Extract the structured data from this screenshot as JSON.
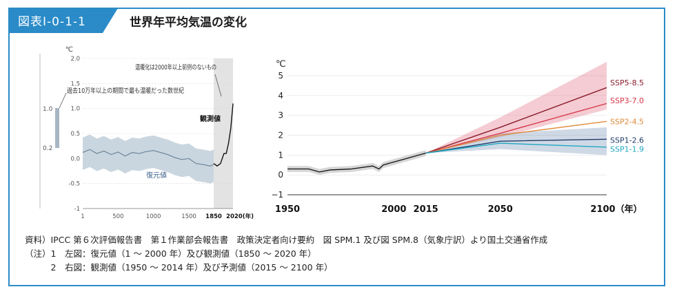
{
  "header": {
    "code": "図表Ⅰ-0-1-1",
    "title": "世界年平均気温の変化"
  },
  "colors": {
    "accent": "#2a8bc8"
  },
  "notes": [
    "資料）IPCC 第６次評価報告書　第１作業部会報告書　政策決定者向け要約　図 SPM.1 及び図 SPM.8（気象庁訳）より国土交通省作成",
    "（注）1　左図：復元値（1 ～ 2000 年）及び観測値（1850 ～ 2020 年）",
    "　　　2　右図：観測値（1950 ～ 2014 年）及び予測値（2015 ～ 2100 年）"
  ],
  "chart_data": [
    {
      "type": "line",
      "title": "",
      "ylabel": "℃",
      "ylim": [
        -1,
        2
      ],
      "xlim": [
        1,
        2020
      ],
      "yticks": [
        "2.0",
        "1.5",
        "1.0",
        "0.5",
        "0.0",
        "-0.5",
        "-1"
      ],
      "xticks": [
        "1",
        "500",
        "1000",
        "1500",
        "1850",
        "2020(年)"
      ],
      "side_bar": {
        "top": "1.0",
        "bottom": "0.2",
        "caption": "過去10万年以上の期間で最も温暖だった数世紀"
      },
      "annotations": [
        "温暖化は2000年以上前例のないもの",
        "観測値",
        "復元値"
      ],
      "series": [
        {
          "name": "復元値",
          "x": [
            1,
            100,
            200,
            300,
            400,
            500,
            600,
            700,
            800,
            900,
            1000,
            1100,
            1200,
            1300,
            1400,
            1500,
            1600,
            1700,
            1800,
            1850
          ],
          "y": [
            0.12,
            0.18,
            0.1,
            0.15,
            0.08,
            0.13,
            0.05,
            0.12,
            0.1,
            0.14,
            0.16,
            0.12,
            0.08,
            0.02,
            -0.02,
            0.0,
            -0.1,
            -0.12,
            -0.15,
            -0.12
          ]
        },
        {
          "name": "観測値",
          "x": [
            1850,
            1880,
            1910,
            1940,
            1960,
            1980,
            2000,
            2010,
            2020
          ],
          "y": [
            -0.1,
            -0.15,
            -0.1,
            0.1,
            0.1,
            0.3,
            0.6,
            0.85,
            1.1
          ]
        }
      ]
    },
    {
      "type": "line",
      "ylabel": "℃",
      "ylim": [
        -1,
        5
      ],
      "yticks": [
        "5",
        "4",
        "3",
        "2",
        "1",
        "0",
        "−1"
      ],
      "xticks": [
        "1950",
        "2000",
        "2015",
        "2050",
        "2100（年）"
      ],
      "series": [
        {
          "name": "観測値",
          "x": [
            1950,
            1960,
            1965,
            1970,
            1980,
            1990,
            1993,
            1995,
            2000,
            2005,
            2010,
            2015
          ],
          "y": [
            0.3,
            0.3,
            0.15,
            0.25,
            0.3,
            0.45,
            0.3,
            0.5,
            0.65,
            0.8,
            0.95,
            1.1
          ]
        },
        {
          "name": "SSP5-8.5",
          "color": "#8b1a2b",
          "x": [
            2015,
            2050,
            2100
          ],
          "y": [
            1.1,
            2.4,
            4.4
          ]
        },
        {
          "name": "SSP3-7.0",
          "color": "#d63347",
          "x": [
            2015,
            2050,
            2100
          ],
          "y": [
            1.1,
            2.1,
            3.6
          ]
        },
        {
          "name": "SSP2-4.5",
          "color": "#e08a3c",
          "x": [
            2015,
            2050,
            2100
          ],
          "y": [
            1.1,
            2.0,
            2.7
          ]
        },
        {
          "name": "SSP1-2.6",
          "color": "#1f3a66",
          "x": [
            2015,
            2050,
            2100
          ],
          "y": [
            1.1,
            1.7,
            1.8
          ]
        },
        {
          "name": "SSP1-1.9",
          "color": "#1fa6c2",
          "x": [
            2015,
            2050,
            2100
          ],
          "y": [
            1.1,
            1.6,
            1.4
          ]
        }
      ]
    }
  ]
}
